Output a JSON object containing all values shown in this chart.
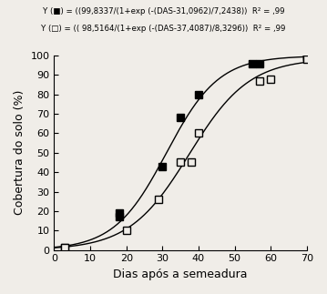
{
  "series1": {
    "x": [
      3,
      18,
      18,
      30,
      35,
      40,
      55,
      57,
      70,
      70
    ],
    "y": [
      1,
      17,
      19,
      43,
      68,
      80,
      96,
      96,
      100,
      99
    ],
    "a": 99.8337,
    "b": 31.0962,
    "c": 7.2438,
    "fillstyle": "full"
  },
  "series2": {
    "x": [
      3,
      20,
      29,
      35,
      38,
      40,
      57,
      60,
      70,
      70
    ],
    "y": [
      1,
      10,
      26,
      45,
      45,
      60,
      87,
      88,
      99,
      98
    ],
    "a": 98.5164,
    "b": 37.4087,
    "c": 8.3296,
    "fillstyle": "none"
  },
  "xlabel": "Dias após a semeadura",
  "ylabel": "Cobertura do solo (%)",
  "xlim": [
    0,
    70
  ],
  "ylim": [
    0,
    100
  ],
  "xticks": [
    0,
    10,
    20,
    30,
    40,
    50,
    60,
    70
  ],
  "yticks": [
    0,
    10,
    20,
    30,
    40,
    50,
    60,
    70,
    80,
    90,
    100
  ],
  "background_color": "#f0ede8",
  "line_color": "black",
  "label1": "Y (■) = ((99,8337/(1+exp (-(DAS-31,0962)/7,2438))  R² = ,99",
  "label2": "Y (□) = (( 98,5164/(1+exp (-(DAS-37,4087)/8,3296))  R² = ,99"
}
